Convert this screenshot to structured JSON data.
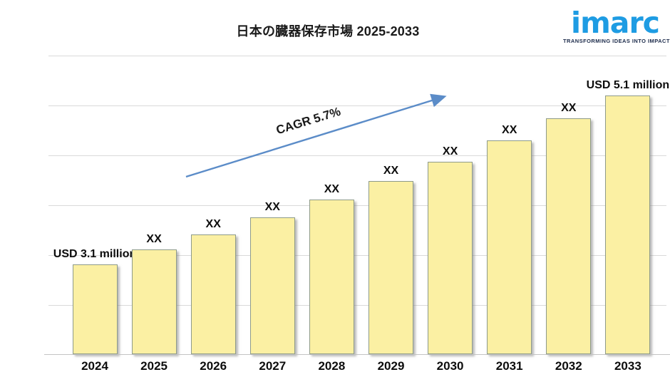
{
  "header": {
    "title": "日本の臓器保存市場  2025-2033",
    "logo": {
      "brand": "imarc",
      "tagline": "TRANSFORMING IDEAS INTO IMPACT",
      "brand_color": "#1E9CE3",
      "tagline_color": "#1B2A4A"
    }
  },
  "chart_data": {
    "type": "bar",
    "title": "日本の臓器保存市場  2025-2033",
    "categories": [
      "2024",
      "2025",
      "2026",
      "2027",
      "2028",
      "2029",
      "2030",
      "2031",
      "2032",
      "2033"
    ],
    "values": [
      3.1,
      3.28,
      3.46,
      3.66,
      3.87,
      4.09,
      4.32,
      4.57,
      4.83,
      5.1
    ],
    "unit": "USD million",
    "bar_labels": [
      "USD 3.1 million",
      "XX",
      "XX",
      "XX",
      "XX",
      "XX",
      "XX",
      "XX",
      "XX",
      "USD 5.1 million"
    ],
    "annotation": "CAGR 5.7%",
    "xlabel": "",
    "ylabel": "",
    "ylim": [
      2.04,
      5.7
    ],
    "grid": "horizontal",
    "legend": "none",
    "colors": {
      "bar_fill": "#FBF0A3",
      "bar_border": "#8E9B8A",
      "arrow": "#5B8CC8",
      "gridline": "#D9D9D9",
      "label_text": "#0d0d0d"
    }
  }
}
